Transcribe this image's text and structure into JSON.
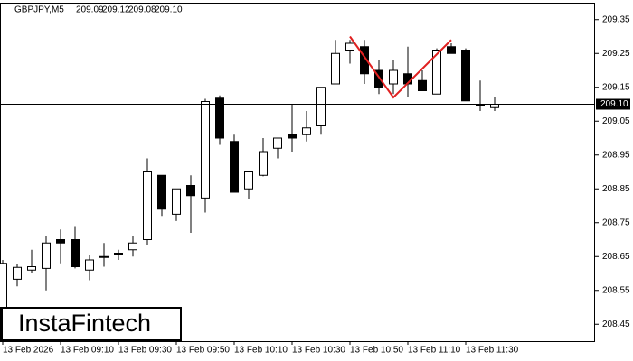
{
  "chart_data": {
    "type": "candlestick",
    "title": "GBPJPY,M5",
    "header_values": [
      "209.09",
      "209.12",
      "209.08",
      "209.10"
    ],
    "watermark": "InstaFintech",
    "categories": [
      "13 Feb 2026",
      null,
      null,
      null,
      "13 Feb 09:10",
      null,
      null,
      null,
      "13 Feb 09:30",
      null,
      null,
      null,
      "13 Feb 09:50",
      null,
      null,
      null,
      "13 Feb 10:10",
      null,
      null,
      null,
      "13 Feb 10:30",
      null,
      null,
      null,
      "13 Feb 10:50",
      null,
      null,
      null,
      "13 Feb 11:10",
      null,
      null,
      null,
      "13 Feb 11:30",
      null,
      null
    ],
    "open": [
      208.5,
      208.583,
      208.61,
      208.615,
      208.7,
      208.7,
      208.61,
      208.65,
      208.66,
      208.67,
      208.7,
      208.89,
      208.775,
      208.86,
      208.823,
      209.118,
      208.99,
      208.85,
      208.89,
      208.97,
      209.01,
      209.01,
      209.036,
      209.16,
      209.26,
      209.27,
      209.2,
      209.16,
      209.19,
      209.17,
      209.13,
      209.27,
      209.26,
      209.1,
      209.09
    ],
    "high": [
      208.64,
      208.628,
      208.67,
      208.71,
      208.73,
      208.74,
      208.655,
      208.69,
      208.67,
      208.71,
      208.94,
      208.89,
      208.85,
      208.89,
      209.116,
      209.126,
      209.01,
      208.9,
      209.0,
      209.0,
      209.1,
      209.08,
      209.15,
      209.29,
      209.29,
      209.29,
      209.23,
      209.23,
      209.27,
      209.2,
      209.265,
      209.28,
      209.265,
      209.17,
      209.12
    ],
    "low": [
      208.42,
      208.562,
      208.6,
      208.55,
      208.63,
      208.615,
      208.58,
      208.62,
      208.64,
      208.65,
      208.685,
      208.77,
      208.755,
      208.72,
      208.78,
      208.98,
      208.84,
      208.82,
      208.887,
      208.94,
      208.96,
      208.99,
      209.01,
      209.16,
      209.22,
      209.16,
      209.13,
      209.13,
      209.12,
      209.14,
      209.13,
      209.25,
      209.11,
      209.08,
      209.08
    ],
    "close": [
      208.63,
      208.618,
      208.62,
      208.69,
      208.69,
      208.62,
      208.64,
      208.65,
      208.66,
      208.69,
      208.9,
      208.79,
      208.85,
      208.83,
      209.108,
      209.0,
      208.84,
      208.9,
      208.96,
      209.0,
      209.0,
      209.03,
      209.15,
      209.25,
      209.28,
      209.19,
      209.15,
      209.2,
      209.16,
      209.14,
      209.26,
      209.25,
      209.11,
      209.095,
      209.1
    ],
    "up_color": "#ffffff",
    "down_color": "#000000",
    "ylim": [
      208.4,
      209.4
    ],
    "yticks": [
      209.35,
      209.25,
      209.15,
      209.05,
      208.95,
      208.85,
      208.75,
      208.65,
      208.55,
      208.45
    ],
    "price_line": {
      "value": 209.1,
      "label": "209.10"
    },
    "pattern": {
      "color": "#e02020",
      "x": [
        24,
        27,
        31
      ],
      "values": [
        209.3,
        209.12,
        209.29
      ]
    }
  }
}
